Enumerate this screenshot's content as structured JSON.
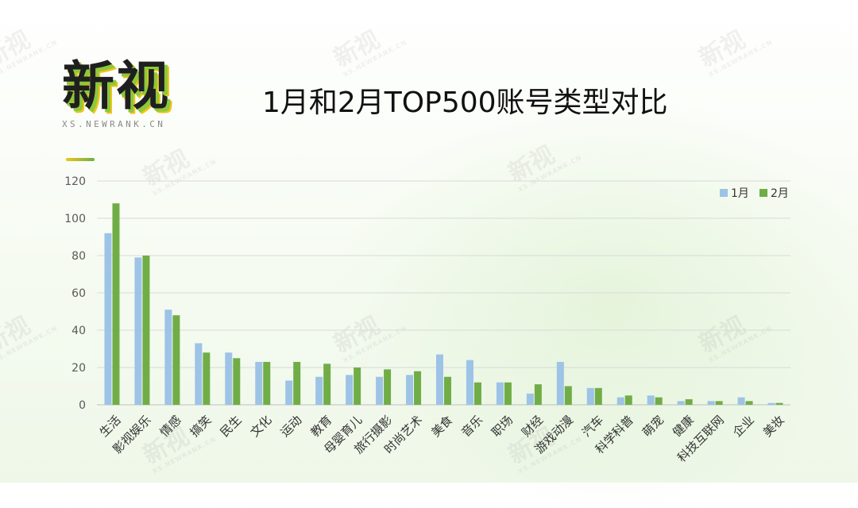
{
  "logo": {
    "text": "新视",
    "subtitle": "XS.NEWRANK.CN"
  },
  "watermark": {
    "text": "新视",
    "sub": "XS.NEWRANK.CN"
  },
  "colors": {
    "series1": "#9dc3e6",
    "series2": "#70ad47",
    "grid": "#d9d9d9",
    "axis_text": "#595959"
  },
  "chart_data": {
    "type": "bar",
    "title": "1月和2月TOP500账号类型对比",
    "xlabel": "",
    "ylabel": "",
    "ylim": [
      0,
      120
    ],
    "yticks": [
      0,
      20,
      40,
      60,
      80,
      100,
      120
    ],
    "grid": true,
    "legend_position": "top-right",
    "categories": [
      "生活",
      "影视娱乐",
      "情感",
      "搞笑",
      "民生",
      "文化",
      "运动",
      "教育",
      "母婴育儿",
      "旅行摄影",
      "时尚艺术",
      "美食",
      "音乐",
      "职场",
      "财经",
      "游戏动漫",
      "汽车",
      "科学科普",
      "萌宠",
      "健康",
      "科技互联网",
      "企业",
      "美妆"
    ],
    "series": [
      {
        "name": "1月",
        "values": [
          92,
          79,
          51,
          33,
          28,
          23,
          13,
          15,
          16,
          15,
          16,
          27,
          24,
          12,
          6,
          23,
          9,
          4,
          5,
          2,
          2,
          4,
          1
        ]
      },
      {
        "name": "2月",
        "values": [
          108,
          80,
          48,
          28,
          25,
          23,
          23,
          22,
          20,
          19,
          18,
          15,
          12,
          12,
          11,
          10,
          9,
          5,
          4,
          3,
          2,
          2,
          1
        ]
      }
    ]
  }
}
